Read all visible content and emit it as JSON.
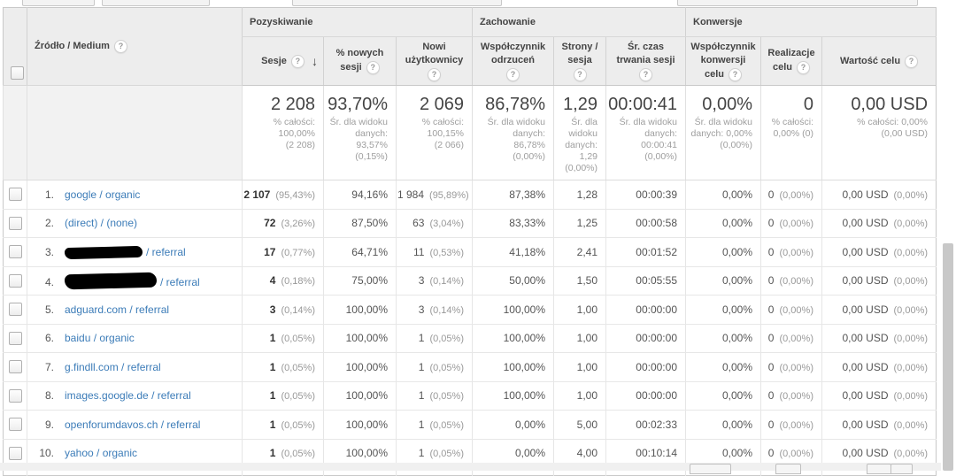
{
  "icons": {
    "help": "?",
    "sort_desc": "↓"
  },
  "colors": {
    "link_blue": "#3c7cb8",
    "header_bg": "#ededed",
    "redaction": "#000000"
  },
  "table": {
    "groups": {
      "acquisition": "Pozyskiwanie",
      "behavior": "Zachowanie",
      "conversions": "Konwersje"
    },
    "cols": {
      "source": {
        "label": "Źródło / Medium"
      },
      "sessions": {
        "l1": "Sesje"
      },
      "new_sessions": {
        "l1": "% nowych",
        "l2": "sesji"
      },
      "new_users": {
        "l1": "Nowi",
        "l2": "użytkownicy"
      },
      "bounce": {
        "l1": "Współczynnik",
        "l2": "odrzuceń"
      },
      "pages": {
        "l1": "Strony /",
        "l2": "sesja"
      },
      "duration": {
        "l1": "Śr. czas",
        "l2": "trwania sesji"
      },
      "conv_rate": {
        "l1": "Współczynnik",
        "l2": "konwersji",
        "l3": "celu"
      },
      "completions": {
        "l1": "Realizacje",
        "l2": "celu"
      },
      "value": {
        "l1": "Wartość celu"
      }
    },
    "summary": {
      "sessions": {
        "big": "2 208",
        "sub": "% całości:\n100,00%\n(2 208)"
      },
      "new_sessions": {
        "big": "93,70%",
        "sub": "Śr. dla widoku\ndanych:\n93,57%\n(0,15%)"
      },
      "new_users": {
        "big": "2 069",
        "sub": "% całości:\n100,15%\n(2 066)"
      },
      "bounce": {
        "big": "86,78%",
        "sub": "Śr. dla widoku\ndanych:\n86,78%\n(0,00%)"
      },
      "pages": {
        "big": "1,29",
        "sub": "Śr. dla\nwidoku\ndanych:\n1,29\n(0,00%)"
      },
      "duration": {
        "big": "00:00:41",
        "sub": "Śr. dla widoku\ndanych:\n00:00:41\n(0,00%)"
      },
      "conv_rate": {
        "big": "0,00%",
        "sub": "Śr. dla widoku\ndanych: 0,00%\n(0,00%)"
      },
      "completions": {
        "big": "0",
        "sub": "% całości:\n0,00% (0)"
      },
      "value": {
        "big": "0,00 USD",
        "sub": "% całości: 0,00%\n(0,00 USD)"
      }
    },
    "rows": [
      {
        "index": "1.",
        "source": "google / organic",
        "redacted": false,
        "redact_width": 0,
        "redact_height": 0,
        "sessions": "2 107",
        "sessions_pct": "(95,43%)",
        "new_sessions": "94,16%",
        "new_users": "1 984",
        "new_users_pct": "(95,89%)",
        "bounce": "87,38%",
        "pages": "1,28",
        "duration": "00:00:39",
        "conv_rate": "0,00%",
        "completions": "0",
        "completions_pct": "(0,00%)",
        "value": "0,00 USD",
        "value_pct": "(0,00%)"
      },
      {
        "index": "2.",
        "source": "(direct) / (none)",
        "redacted": false,
        "redact_width": 0,
        "redact_height": 0,
        "sessions": "72",
        "sessions_pct": "(3,26%)",
        "new_sessions": "87,50%",
        "new_users": "63",
        "new_users_pct": "(3,04%)",
        "bounce": "83,33%",
        "pages": "1,25",
        "duration": "00:00:58",
        "conv_rate": "0,00%",
        "completions": "0",
        "completions_pct": "(0,00%)",
        "value": "0,00 USD",
        "value_pct": "(0,00%)"
      },
      {
        "index": "3.",
        "source": "/ referral",
        "redacted": true,
        "redact_width": 88,
        "redact_height": 13,
        "sessions": "17",
        "sessions_pct": "(0,77%)",
        "new_sessions": "64,71%",
        "new_users": "11",
        "new_users_pct": "(0,53%)",
        "bounce": "41,18%",
        "pages": "2,41",
        "duration": "00:01:52",
        "conv_rate": "0,00%",
        "completions": "0",
        "completions_pct": "(0,00%)",
        "value": "0,00 USD",
        "value_pct": "(0,00%)"
      },
      {
        "index": "4.",
        "source": "/ referral",
        "redacted": true,
        "redact_width": 104,
        "redact_height": 17,
        "sessions": "4",
        "sessions_pct": "(0,18%)",
        "new_sessions": "75,00%",
        "new_users": "3",
        "new_users_pct": "(0,14%)",
        "bounce": "50,00%",
        "pages": "1,50",
        "duration": "00:05:55",
        "conv_rate": "0,00%",
        "completions": "0",
        "completions_pct": "(0,00%)",
        "value": "0,00 USD",
        "value_pct": "(0,00%)"
      },
      {
        "index": "5.",
        "source": "adguard.com / referral",
        "redacted": false,
        "redact_width": 0,
        "redact_height": 0,
        "sessions": "3",
        "sessions_pct": "(0,14%)",
        "new_sessions": "100,00%",
        "new_users": "3",
        "new_users_pct": "(0,14%)",
        "bounce": "100,00%",
        "pages": "1,00",
        "duration": "00:00:00",
        "conv_rate": "0,00%",
        "completions": "0",
        "completions_pct": "(0,00%)",
        "value": "0,00 USD",
        "value_pct": "(0,00%)"
      },
      {
        "index": "6.",
        "source": "baidu / organic",
        "redacted": false,
        "redact_width": 0,
        "redact_height": 0,
        "sessions": "1",
        "sessions_pct": "(0,05%)",
        "new_sessions": "100,00%",
        "new_users": "1",
        "new_users_pct": "(0,05%)",
        "bounce": "100,00%",
        "pages": "1,00",
        "duration": "00:00:00",
        "conv_rate": "0,00%",
        "completions": "0",
        "completions_pct": "(0,00%)",
        "value": "0,00 USD",
        "value_pct": "(0,00%)"
      },
      {
        "index": "7.",
        "source": "g.findll.com / referral",
        "redacted": false,
        "redact_width": 0,
        "redact_height": 0,
        "sessions": "1",
        "sessions_pct": "(0,05%)",
        "new_sessions": "100,00%",
        "new_users": "1",
        "new_users_pct": "(0,05%)",
        "bounce": "100,00%",
        "pages": "1,00",
        "duration": "00:00:00",
        "conv_rate": "0,00%",
        "completions": "0",
        "completions_pct": "(0,00%)",
        "value": "0,00 USD",
        "value_pct": "(0,00%)"
      },
      {
        "index": "8.",
        "source": "images.google.de / referral",
        "redacted": false,
        "redact_width": 0,
        "redact_height": 0,
        "sessions": "1",
        "sessions_pct": "(0,05%)",
        "new_sessions": "100,00%",
        "new_users": "1",
        "new_users_pct": "(0,05%)",
        "bounce": "100,00%",
        "pages": "1,00",
        "duration": "00:00:00",
        "conv_rate": "0,00%",
        "completions": "0",
        "completions_pct": "(0,00%)",
        "value": "0,00 USD",
        "value_pct": "(0,00%)"
      },
      {
        "index": "9.",
        "source": "openforumdavos.ch / referral",
        "redacted": false,
        "redact_width": 0,
        "redact_height": 0,
        "sessions": "1",
        "sessions_pct": "(0,05%)",
        "new_sessions": "100,00%",
        "new_users": "1",
        "new_users_pct": "(0,05%)",
        "bounce": "0,00%",
        "pages": "5,00",
        "duration": "00:02:33",
        "conv_rate": "0,00%",
        "completions": "0",
        "completions_pct": "(0,00%)",
        "value": "0,00 USD",
        "value_pct": "(0,00%)"
      },
      {
        "index": "10.",
        "source": "yahoo / organic",
        "redacted": false,
        "redact_width": 0,
        "redact_height": 0,
        "sessions": "1",
        "sessions_pct": "(0,05%)",
        "new_sessions": "100,00%",
        "new_users": "1",
        "new_users_pct": "(0,05%)",
        "bounce": "0,00%",
        "pages": "4,00",
        "duration": "00:10:14",
        "conv_rate": "0,00%",
        "completions": "0",
        "completions_pct": "(0,00%)",
        "value": "0,00 USD",
        "value_pct": "(0,00%)"
      }
    ]
  }
}
